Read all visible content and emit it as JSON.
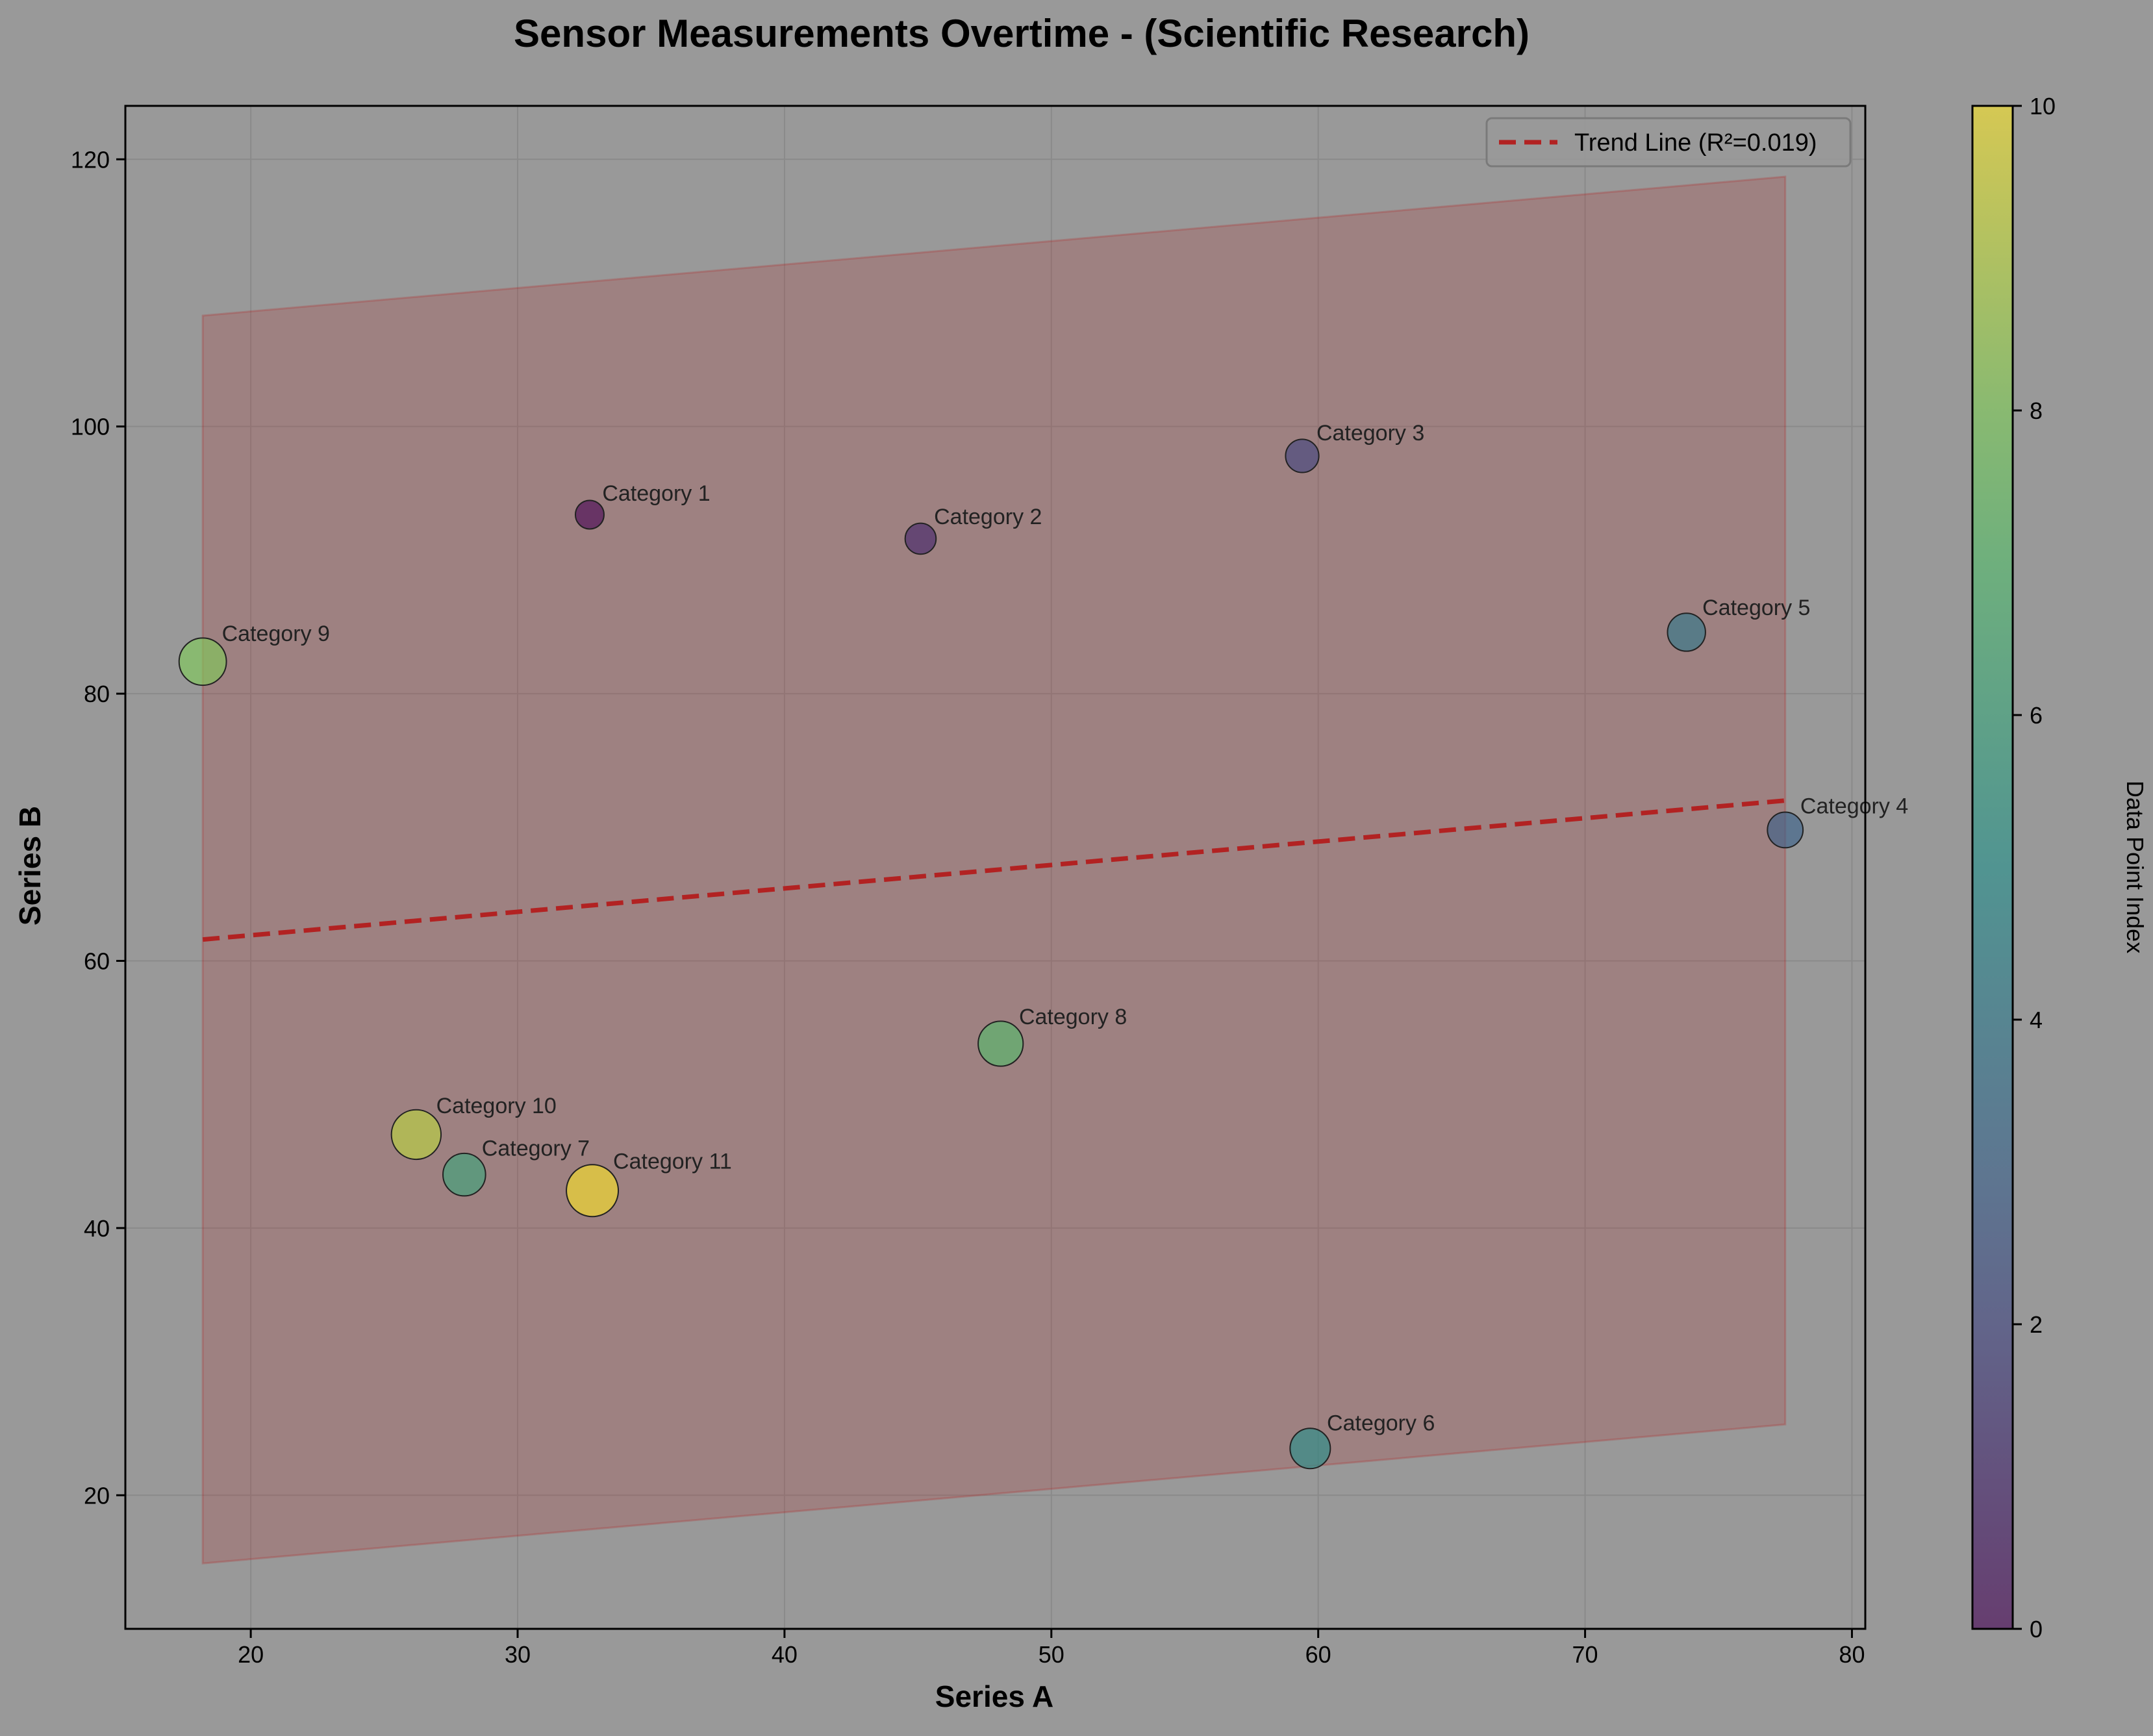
{
  "chart_data": {
    "type": "scatter",
    "title": "Sensor Measurements Overtime - (Scientific Research)",
    "xlabel": "Series A",
    "ylabel": "Series B",
    "xlim": [
      15.3,
      80.5
    ],
    "ylim": [
      10,
      124
    ],
    "xticks": [
      20,
      30,
      40,
      50,
      60,
      70,
      80
    ],
    "yticks": [
      20,
      40,
      60,
      80,
      100,
      120
    ],
    "grid": true,
    "background": "#999999",
    "points": [
      {
        "label": "Category 1",
        "x": 32.7,
        "y": 93.4,
        "index": 0
      },
      {
        "label": "Category 2",
        "x": 45.1,
        "y": 91.6,
        "index": 1
      },
      {
        "label": "Category 3",
        "x": 59.4,
        "y": 97.8,
        "index": 2
      },
      {
        "label": "Category 4",
        "x": 77.5,
        "y": 69.8,
        "index": 3
      },
      {
        "label": "Category 5",
        "x": 73.8,
        "y": 84.6,
        "index": 4
      },
      {
        "label": "Category 6",
        "x": 59.7,
        "y": 23.5,
        "index": 5
      },
      {
        "label": "Category 7",
        "x": 28.0,
        "y": 44.0,
        "index": 6
      },
      {
        "label": "Category 8",
        "x": 48.1,
        "y": 53.8,
        "index": 7
      },
      {
        "label": "Category 9",
        "x": 18.2,
        "y": 82.4,
        "index": 8
      },
      {
        "label": "Category 10",
        "x": 26.2,
        "y": 47.0,
        "index": 9
      },
      {
        "label": "Category 11",
        "x": 32.8,
        "y": 42.8,
        "index": 10
      }
    ],
    "trend_line": {
      "label": "Trend Line (R²=0.019)",
      "x": [
        18.2,
        77.5
      ],
      "y": [
        61.6,
        72.0
      ],
      "color": "#b22222"
    },
    "confidence_band": {
      "x": [
        18.2,
        77.5
      ],
      "upper": [
        108.3,
        118.7
      ],
      "lower": [
        14.9,
        25.3
      ],
      "color": "#b22222"
    },
    "legend": {
      "position": "upper right"
    },
    "colorbar": {
      "label": "Data Point Index",
      "min": 0,
      "max": 10,
      "ticks": [
        0,
        2,
        4,
        6,
        8,
        10
      ],
      "colormap": "viridis"
    }
  }
}
